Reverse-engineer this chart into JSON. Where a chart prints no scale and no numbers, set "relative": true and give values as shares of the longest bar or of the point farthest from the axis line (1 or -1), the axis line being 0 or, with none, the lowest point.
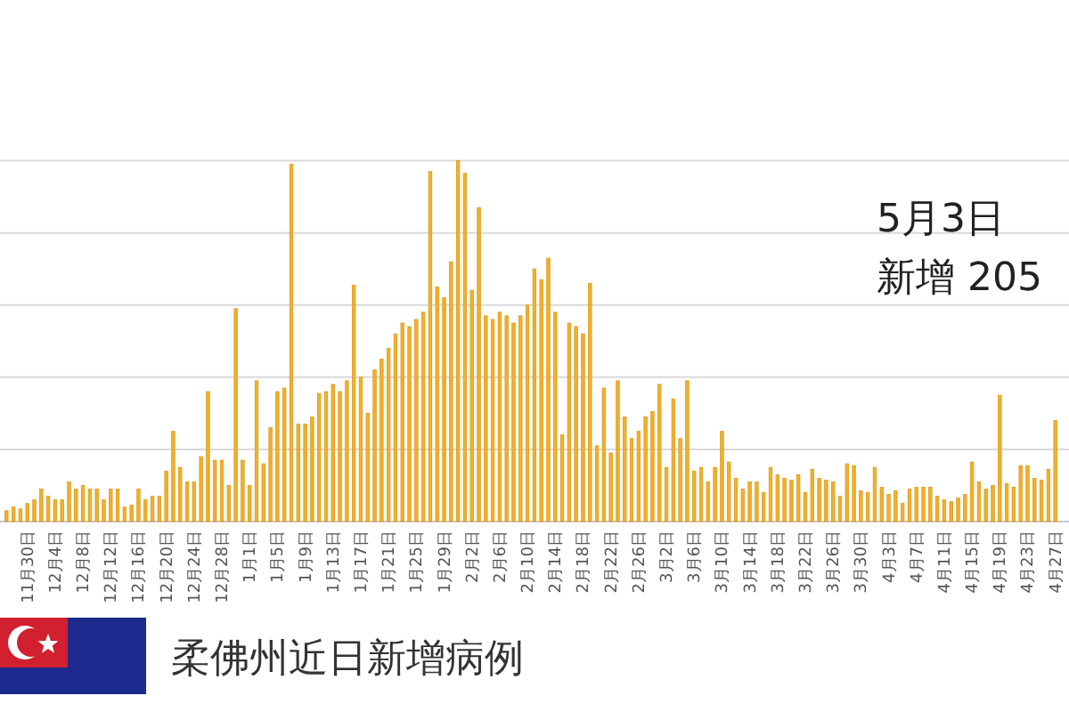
{
  "chart_data": {
    "type": "bar",
    "title": "柔佛州近日新增病例",
    "relative": true,
    "grid": true,
    "color": "#f0b22a",
    "annotations": [
      "5月3日",
      "新增 205"
    ],
    "categories": [
      null,
      null,
      null,
      "11月30日",
      null,
      null,
      null,
      "12月4日",
      null,
      null,
      null,
      "12月8日",
      null,
      null,
      null,
      "12月12日",
      null,
      null,
      null,
      "12月16日",
      null,
      null,
      null,
      "12月20日",
      null,
      null,
      null,
      "12月24日",
      null,
      null,
      null,
      "12月28日",
      null,
      null,
      null,
      "1月1日",
      null,
      null,
      null,
      "1月5日",
      null,
      null,
      null,
      "1月9日",
      null,
      null,
      null,
      "1月13日",
      null,
      null,
      null,
      "1月17日",
      null,
      null,
      null,
      "1月21日",
      null,
      null,
      null,
      "1月25日",
      null,
      null,
      null,
      "1月29日",
      null,
      null,
      null,
      "2月2日",
      null,
      null,
      null,
      "2月6日",
      null,
      null,
      null,
      "2月10日",
      null,
      null,
      null,
      "2月14日",
      null,
      null,
      null,
      "2月18日",
      null,
      null,
      null,
      "2月22日",
      null,
      null,
      null,
      "2月26日",
      null,
      null,
      null,
      "3月2日",
      null,
      null,
      null,
      "3月6日",
      null,
      null,
      null,
      "3月10日",
      null,
      null,
      null,
      "3月14日",
      null,
      null,
      null,
      "3月18日",
      null,
      null,
      null,
      "3月22日",
      null,
      null,
      null,
      "3月26日",
      null,
      null,
      null,
      "3月30日",
      null,
      null,
      null,
      "4月3日",
      null,
      null,
      null,
      "4月7日",
      null,
      null,
      null,
      "4月11日",
      null,
      null,
      null,
      "4月15日",
      null,
      null,
      null,
      "4月19日",
      null,
      null,
      null,
      "4月23日",
      null,
      null,
      null,
      "4月27日"
    ],
    "values": [
      0.03,
      0.04,
      0.035,
      0.05,
      0.06,
      0.09,
      0.07,
      0.06,
      0.06,
      0.11,
      0.09,
      0.1,
      0.09,
      0.09,
      0.06,
      0.09,
      0.09,
      0.04,
      0.045,
      0.09,
      0.06,
      0.07,
      0.07,
      0.14,
      0.25,
      0.15,
      0.11,
      0.11,
      0.18,
      0.36,
      0.17,
      0.17,
      0.1,
      0.59,
      0.17,
      0.1,
      0.39,
      0.16,
      0.26,
      0.36,
      0.37,
      0.99,
      0.27,
      0.27,
      0.29,
      0.355,
      0.36,
      0.38,
      0.36,
      0.39,
      0.655,
      0.4,
      0.3,
      0.42,
      0.45,
      0.48,
      0.52,
      0.55,
      0.54,
      0.56,
      0.58,
      0.97,
      0.65,
      0.62,
      0.72,
      1,
      0.965,
      0.64,
      0.87,
      0.57,
      0.56,
      0.58,
      0.57,
      0.55,
      0.57,
      0.6,
      0.7,
      0.67,
      0.73,
      0.58,
      0.24,
      0.55,
      0.54,
      0.52,
      0.66,
      0.21,
      0.37,
      0.19,
      0.39,
      0.29,
      0.23,
      0.25,
      0.29,
      0.305,
      0.38,
      0.15,
      0.34,
      0.23,
      0.39,
      0.14,
      0.15,
      0.11,
      0.15,
      0.25,
      0.165,
      0.12,
      0.09,
      0.11,
      0.11,
      0.08,
      0.15,
      0.13,
      0.12,
      0.115,
      0.13,
      0.08,
      0.145,
      0.12,
      0.115,
      0.11,
      0.07,
      0.16,
      0.155,
      0.085,
      0.08,
      0.15,
      0.095,
      0.075,
      0.085,
      0.05,
      0.09,
      0.095,
      0.095,
      0.095,
      0.07,
      0.06,
      0.055,
      0.065,
      0.075,
      0.165,
      0.11,
      0.09,
      0.1,
      0.35,
      0.105,
      0.095,
      0.155,
      0.155,
      0.12,
      0.115,
      0.145,
      0.28
    ]
  }
}
